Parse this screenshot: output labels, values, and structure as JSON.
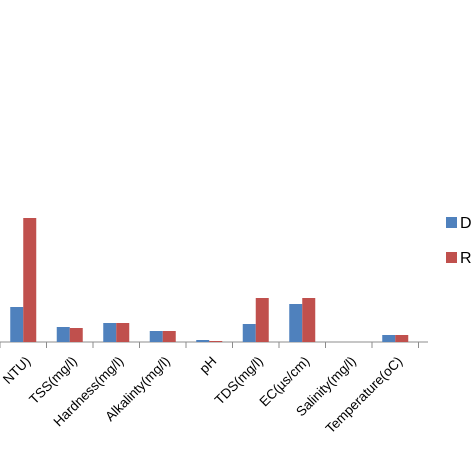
{
  "chart_data": {
    "type": "bar",
    "categories": [
      "NTU)",
      "TSS(mg/l)",
      "Hardness(mg/l)",
      "Alkalinty(mg/l)",
      "pH",
      "TDS(mg/l)",
      "EC(µs/cm)",
      "Salinity(mg/l)",
      "Temperature(oC)"
    ],
    "series": [
      {
        "name": "D",
        "color": "#4f81bd",
        "values": [
          35,
          15,
          19,
          11,
          2,
          18,
          38,
          0,
          7
        ]
      },
      {
        "name": "R",
        "color": "#c0504d",
        "values": [
          124,
          14,
          19,
          11,
          1,
          44,
          44,
          0,
          7
        ]
      }
    ],
    "title": "",
    "xlabel": "",
    "ylabel": "",
    "ylim": [
      0,
      200
    ],
    "grid": false,
    "legend_position": "right"
  }
}
